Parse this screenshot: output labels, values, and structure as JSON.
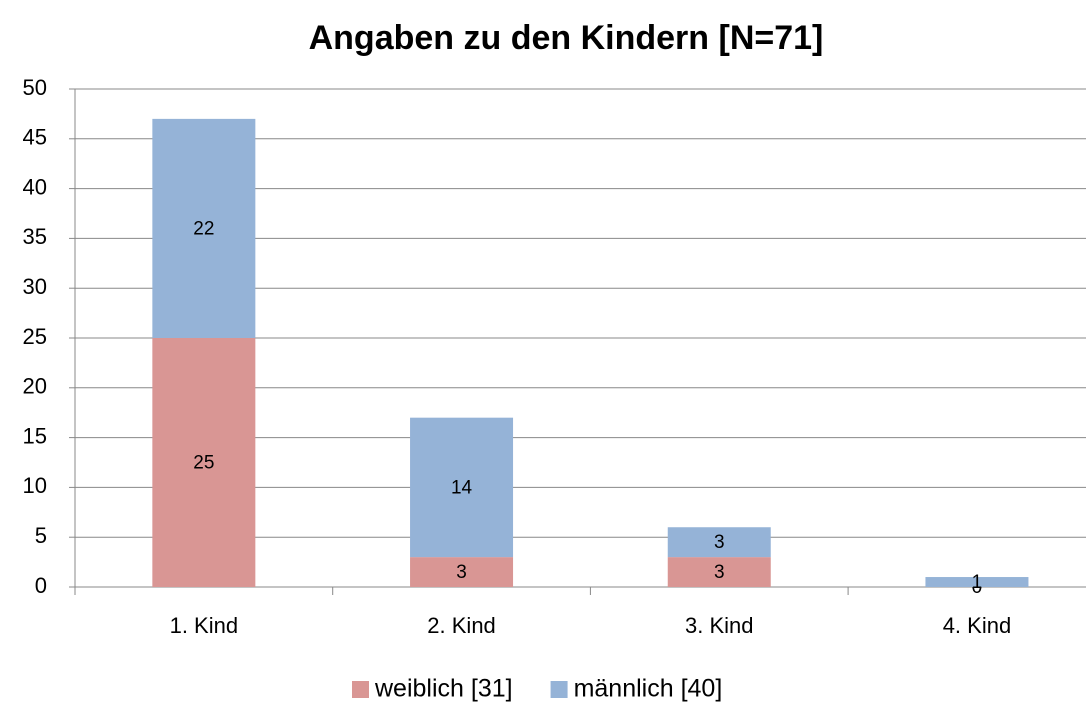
{
  "chart_data": {
    "type": "stacked_bar",
    "title": "Angaben zu den Kindern [N=71]",
    "categories": [
      "1. Kind",
      "2. Kind",
      "3. Kind",
      "4. Kind"
    ],
    "series": [
      {
        "name": "weiblich [31]",
        "color": "#d99694",
        "values": [
          25,
          3,
          3,
          0
        ]
      },
      {
        "name": "männlich [40]",
        "color": "#95b3d7",
        "values": [
          22,
          14,
          3,
          1
        ]
      }
    ],
    "ylim": [
      0,
      50
    ],
    "yticks": [
      0,
      5,
      10,
      15,
      20,
      25,
      30,
      35,
      40,
      45,
      50
    ],
    "grid": true,
    "legend": "bottom"
  }
}
